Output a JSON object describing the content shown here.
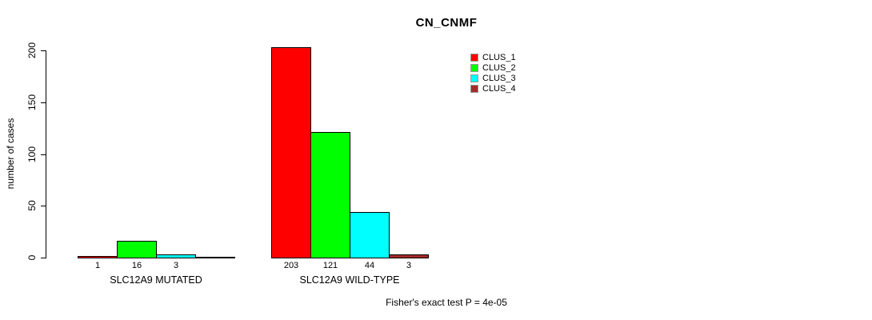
{
  "chart_data": {
    "type": "bar",
    "title": "CN_CNMF",
    "ylabel": "number of cases",
    "xlabel": "",
    "yticks": [
      0,
      50,
      100,
      150,
      200
    ],
    "ylim": [
      0,
      203
    ],
    "grid": false,
    "legend_position": "top-right",
    "categories": [
      "SLC12A9 MUTATED",
      "SLC12A9 WILD-TYPE"
    ],
    "series": [
      {
        "name": "CLUS_1",
        "color": "#FF0000"
      },
      {
        "name": "CLUS_2",
        "color": "#00FF00"
      },
      {
        "name": "CLUS_3",
        "color": "#00FFFF"
      },
      {
        "name": "CLUS_4",
        "color": "#A52A2A"
      }
    ],
    "groups": [
      {
        "label": "SLC12A9 MUTATED",
        "values": [
          1,
          16,
          3,
          0
        ],
        "value_labels": [
          "1",
          "16",
          "3",
          ""
        ]
      },
      {
        "label": "SLC12A9 WILD-TYPE",
        "values": [
          203,
          121,
          44,
          3
        ],
        "value_labels": [
          "203",
          "121",
          "44",
          "3"
        ]
      }
    ],
    "annotation": "Fisher's exact test P = 4e-05"
  }
}
